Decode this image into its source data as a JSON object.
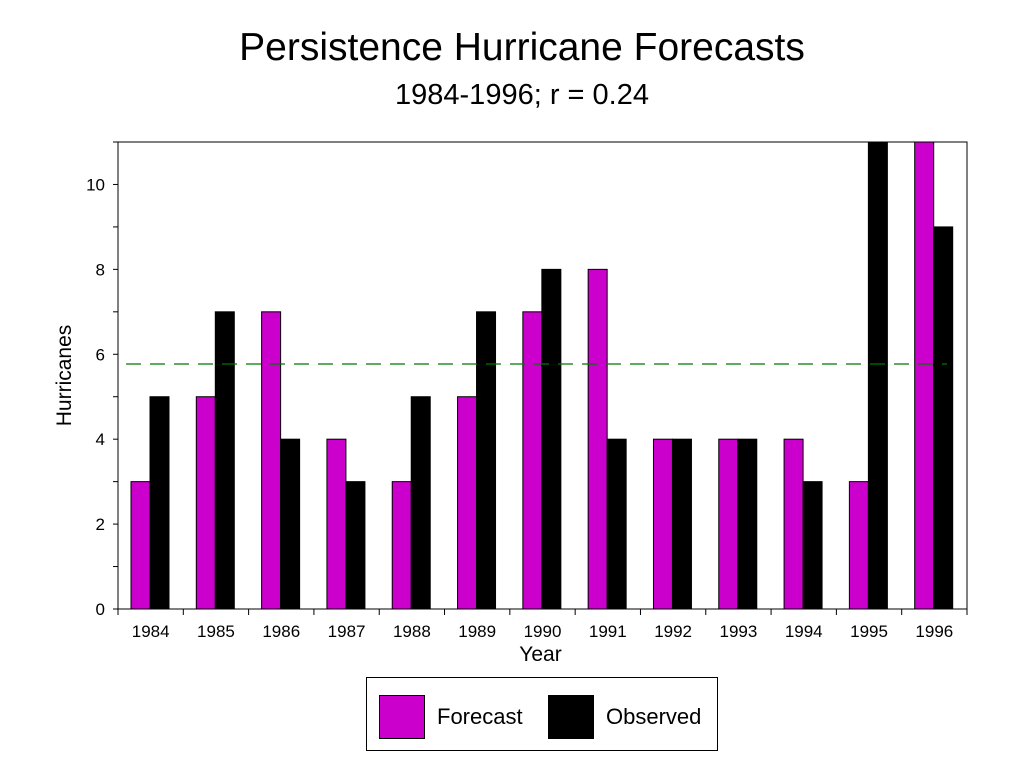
{
  "chart_data": {
    "type": "bar",
    "title": "Persistence Hurricane Forecasts",
    "subtitle": "1984-1996;  r = 0.24",
    "xlabel": "Year",
    "ylabel": "Hurricanes",
    "categories": [
      "1984",
      "1985",
      "1986",
      "1987",
      "1988",
      "1989",
      "1990",
      "1991",
      "1992",
      "1993",
      "1994",
      "1995",
      "1996"
    ],
    "series": [
      {
        "name": "Forecast",
        "color": "#cc00cc",
        "values": [
          3,
          5,
          7,
          4,
          3,
          5,
          7,
          8,
          4,
          4,
          4,
          3,
          11
        ]
      },
      {
        "name": "Observed",
        "color": "#000000",
        "values": [
          5,
          7,
          4,
          3,
          5,
          7,
          8,
          4,
          4,
          4,
          3,
          11,
          9
        ]
      }
    ],
    "ylim": [
      0,
      11
    ],
    "yticks": [
      0,
      2,
      4,
      6,
      8,
      10
    ],
    "reference_line": {
      "value": 5.77,
      "color": "#007700",
      "style": "dashed"
    },
    "grid": false,
    "legend_position": "bottom"
  }
}
